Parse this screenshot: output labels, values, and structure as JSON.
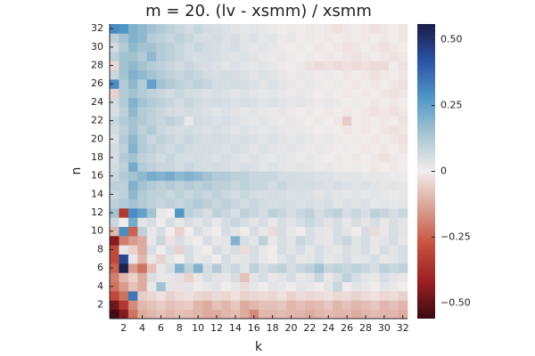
{
  "chart_data": {
    "type": "heatmap",
    "title": "m = 20. (lv - xsmm) / xsmm",
    "xlabel": "k",
    "ylabel": "n",
    "x": [
      1,
      2,
      3,
      4,
      5,
      6,
      7,
      8,
      9,
      10,
      11,
      12,
      13,
      14,
      15,
      16,
      17,
      18,
      19,
      20,
      21,
      22,
      23,
      24,
      25,
      26,
      27,
      28,
      29,
      30,
      31,
      32
    ],
    "y": [
      1,
      2,
      3,
      4,
      5,
      6,
      7,
      8,
      9,
      10,
      11,
      12,
      13,
      14,
      15,
      16,
      17,
      18,
      19,
      20,
      21,
      22,
      23,
      24,
      25,
      26,
      27,
      28,
      29,
      30,
      31,
      32
    ],
    "xlim": [
      0.5,
      32.5
    ],
    "ylim": [
      0.5,
      32.5
    ],
    "xticks": [
      2,
      4,
      6,
      8,
      10,
      12,
      14,
      16,
      18,
      20,
      22,
      24,
      26,
      28,
      30,
      32
    ],
    "yticks": [
      2,
      4,
      6,
      8,
      10,
      12,
      14,
      16,
      18,
      20,
      22,
      24,
      26,
      28,
      30,
      32
    ],
    "clim": [
      -0.56,
      0.56
    ],
    "cticks": [
      {
        "value": -0.5,
        "label": "−0.50"
      },
      {
        "value": -0.25,
        "label": "−0.25"
      },
      0,
      0.25,
      {
        "value": 0.5,
        "label": "0.50"
      }
    ],
    "colormap": [
      "#3b0a13",
      "#9c1f23",
      "#c6503c",
      "#dba192",
      "#f1ecec",
      "#a9c6d2",
      "#4f97c6",
      "#2a52a8",
      "#1b1d46"
    ],
    "z": [
      [
        -0.55,
        -0.45,
        -0.22,
        -0.12,
        -0.1,
        -0.08,
        -0.1,
        -0.08,
        -0.09,
        -0.1,
        -0.12,
        -0.12,
        -0.1,
        -0.09,
        -0.12,
        -0.18,
        -0.1,
        -0.1,
        -0.09,
        -0.1,
        -0.1,
        -0.12,
        -0.1,
        -0.09,
        -0.1,
        -0.1,
        -0.12,
        -0.1,
        -0.09,
        -0.1,
        -0.1,
        -0.12
      ],
      [
        -0.48,
        -0.35,
        -0.18,
        -0.1,
        -0.08,
        -0.06,
        -0.08,
        -0.07,
        -0.06,
        -0.1,
        -0.12,
        -0.08,
        -0.1,
        -0.07,
        -0.12,
        -0.1,
        -0.08,
        -0.08,
        -0.07,
        -0.1,
        -0.08,
        -0.1,
        -0.09,
        -0.07,
        -0.1,
        -0.08,
        -0.1,
        -0.09,
        -0.07,
        -0.1,
        -0.08,
        -0.1
      ],
      [
        -0.3,
        -0.22,
        0.35,
        -0.06,
        -0.04,
        -0.02,
        -0.05,
        -0.03,
        -0.02,
        -0.04,
        -0.05,
        -0.03,
        -0.04,
        -0.02,
        -0.05,
        -0.04,
        -0.03,
        -0.04,
        -0.02,
        -0.05,
        -0.03,
        -0.04,
        -0.03,
        -0.02,
        -0.04,
        -0.03,
        -0.05,
        -0.03,
        -0.02,
        -0.04,
        -0.03,
        -0.05
      ],
      [
        -0.22,
        -0.15,
        -0.08,
        -0.12,
        0.02,
        0.15,
        0.03,
        -0.02,
        0.03,
        0.0,
        0.02,
        0.03,
        0.0,
        0.02,
        -0.03,
        0.02,
        0.0,
        0.03,
        0.02,
        0.0,
        0.03,
        0.02,
        0.0,
        0.03,
        0.08,
        0.0,
        0.03,
        0.02,
        0.0,
        0.03,
        0.02,
        0.0
      ],
      [
        -0.2,
        -0.1,
        -0.05,
        -0.12,
        0.05,
        0.02,
        0.02,
        0.03,
        -0.05,
        0.02,
        0.05,
        0.03,
        0.02,
        0.05,
        -0.08,
        0.03,
        0.05,
        0.02,
        0.03,
        0.05,
        0.02,
        0.03,
        0.08,
        0.02,
        0.05,
        0.1,
        0.05,
        0.03,
        0.02,
        0.05,
        0.03,
        0.02
      ],
      [
        -0.25,
        0.55,
        -0.15,
        -0.22,
        -0.08,
        0.02,
        0.05,
        0.2,
        0.1,
        0.2,
        0.05,
        0.12,
        0.05,
        0.08,
        0.03,
        0.1,
        0.05,
        0.08,
        0.1,
        0.05,
        0.08,
        0.1,
        0.15,
        0.08,
        0.1,
        0.08,
        0.1,
        0.08,
        0.05,
        0.1,
        0.08,
        0.1
      ],
      [
        -0.3,
        0.45,
        0.02,
        -0.1,
        0.02,
        -0.05,
        0.03,
        0.0,
        0.05,
        0.02,
        0.03,
        0.0,
        0.05,
        0.02,
        0.03,
        0.05,
        0.02,
        0.0,
        0.03,
        0.05,
        0.02,
        0.03,
        0.05,
        0.02,
        0.03,
        0.05,
        0.02,
        0.03,
        0.05,
        0.02,
        0.03,
        0.05
      ],
      [
        -0.3,
        0.02,
        -0.05,
        -0.12,
        0.05,
        0.0,
        0.05,
        -0.05,
        0.05,
        0.02,
        0.0,
        0.05,
        0.03,
        0.05,
        -0.03,
        0.05,
        0.02,
        0.0,
        0.05,
        0.03,
        0.05,
        0.02,
        0.05,
        0.03,
        0.02,
        0.05,
        0.03,
        0.05,
        0.02,
        0.05,
        0.03,
        0.05
      ],
      [
        -0.45,
        -0.2,
        -0.15,
        -0.12,
        0.02,
        0.08,
        -0.02,
        0.05,
        0.02,
        0.0,
        0.05,
        0.02,
        0.03,
        0.2,
        0.05,
        0.03,
        0.1,
        0.02,
        0.05,
        0.03,
        0.08,
        0.05,
        0.03,
        0.02,
        0.05,
        0.08,
        0.03,
        0.05,
        0.02,
        0.03,
        0.05,
        0.02
      ],
      [
        -0.1,
        0.3,
        -0.25,
        0.1,
        0.02,
        0.05,
        0.0,
        -0.05,
        0.0,
        0.05,
        0.02,
        0.0,
        0.05,
        0.03,
        0.0,
        0.05,
        0.02,
        -0.03,
        0.05,
        0.02,
        0.0,
        0.05,
        0.03,
        0.02,
        0.05,
        0.03,
        0.0,
        0.05,
        -0.03,
        0.02,
        0.05,
        0.03
      ],
      [
        0.08,
        0.0,
        0.22,
        0.03,
        0.05,
        0.0,
        0.05,
        0.02,
        0.05,
        0.03,
        0.05,
        0.02,
        0.05,
        0.08,
        0.05,
        0.03,
        0.05,
        0.02,
        0.05,
        0.03,
        0.05,
        0.08,
        0.05,
        0.03,
        0.05,
        0.02,
        0.05,
        0.03,
        0.05,
        0.02,
        0.05,
        0.03
      ],
      [
        0.15,
        -0.35,
        0.3,
        0.25,
        0.15,
        0.02,
        0.0,
        0.28,
        0.1,
        0.08,
        0.05,
        0.1,
        0.08,
        0.05,
        0.1,
        0.08,
        0.05,
        0.1,
        0.08,
        0.05,
        0.08,
        0.1,
        0.05,
        0.08,
        0.1,
        0.05,
        0.08,
        0.05,
        0.1,
        0.08,
        0.05,
        0.08
      ],
      [
        0.1,
        0.12,
        0.15,
        0.12,
        0.1,
        0.08,
        0.1,
        0.08,
        0.1,
        0.12,
        0.1,
        0.08,
        0.1,
        0.08,
        0.06,
        0.08,
        0.06,
        0.05,
        0.06,
        0.05,
        0.04,
        0.05,
        0.04,
        0.05,
        0.03,
        0.04,
        0.03,
        0.04,
        0.02,
        0.03,
        0.02,
        0.03
      ],
      [
        0.08,
        0.1,
        0.18,
        0.12,
        0.1,
        0.1,
        0.08,
        0.1,
        0.08,
        0.1,
        0.08,
        0.1,
        0.08,
        0.06,
        0.08,
        0.06,
        0.05,
        0.06,
        0.05,
        0.04,
        0.05,
        0.04,
        0.03,
        0.04,
        0.03,
        0.02,
        0.03,
        0.02,
        0.03,
        0.02,
        0.01,
        0.02
      ],
      [
        0.1,
        0.1,
        0.2,
        0.15,
        0.12,
        0.1,
        0.12,
        0.1,
        0.12,
        0.1,
        0.12,
        0.1,
        0.1,
        0.08,
        0.1,
        0.08,
        0.08,
        0.06,
        0.08,
        0.06,
        0.05,
        0.06,
        0.05,
        0.04,
        0.05,
        0.04,
        0.03,
        0.04,
        0.03,
        0.02,
        0.03,
        0.02
      ],
      [
        0.08,
        0.12,
        0.15,
        0.18,
        0.22,
        0.2,
        0.22,
        0.18,
        0.2,
        0.18,
        0.15,
        0.12,
        0.12,
        0.1,
        0.1,
        0.08,
        0.08,
        0.08,
        0.06,
        0.06,
        0.05,
        0.05,
        0.04,
        0.04,
        0.03,
        0.03,
        0.03,
        0.02,
        0.02,
        0.02,
        0.01,
        0.01
      ],
      [
        0.06,
        0.1,
        0.22,
        0.12,
        0.1,
        0.08,
        0.08,
        0.06,
        0.08,
        0.06,
        0.05,
        0.06,
        0.05,
        0.04,
        0.05,
        0.04,
        0.03,
        0.04,
        0.03,
        0.02,
        0.03,
        0.02,
        0.01,
        0.02,
        0.01,
        0.0,
        0.01,
        0.0,
        -0.01,
        0.0,
        -0.01,
        0.0
      ],
      [
        0.05,
        0.12,
        0.15,
        0.1,
        0.08,
        0.06,
        0.08,
        0.06,
        0.05,
        0.06,
        0.05,
        0.04,
        0.05,
        0.04,
        0.03,
        0.04,
        0.03,
        0.02,
        0.03,
        0.02,
        0.01,
        0.02,
        0.01,
        0.0,
        0.01,
        0.0,
        -0.01,
        0.0,
        -0.01,
        -0.02,
        -0.01,
        0.0
      ],
      [
        0.06,
        0.1,
        0.2,
        0.12,
        0.1,
        0.08,
        0.06,
        0.08,
        0.06,
        0.05,
        0.06,
        0.05,
        0.04,
        0.05,
        0.04,
        0.03,
        0.04,
        0.03,
        0.02,
        0.03,
        0.02,
        0.01,
        0.02,
        0.01,
        0.0,
        0.01,
        0.0,
        -0.01,
        0.0,
        -0.01,
        0.0,
        -0.01
      ],
      [
        0.04,
        0.12,
        0.18,
        0.12,
        0.08,
        0.1,
        0.08,
        0.06,
        0.08,
        0.06,
        0.05,
        0.06,
        0.05,
        0.04,
        0.05,
        0.04,
        0.03,
        0.04,
        0.03,
        0.02,
        0.03,
        0.02,
        0.01,
        0.02,
        0.01,
        0.0,
        0.01,
        0.0,
        -0.01,
        0.0,
        -0.01,
        -0.02
      ],
      [
        0.06,
        0.1,
        0.15,
        0.1,
        0.12,
        0.08,
        0.06,
        0.05,
        0.06,
        0.05,
        0.04,
        0.05,
        0.04,
        0.03,
        0.04,
        0.03,
        0.02,
        0.03,
        0.02,
        0.01,
        0.02,
        0.01,
        0.0,
        0.01,
        0.0,
        -0.01,
        0.0,
        -0.01,
        0.0,
        -0.01,
        -0.02,
        -0.01
      ],
      [
        0.08,
        0.12,
        0.15,
        0.12,
        0.1,
        0.08,
        0.1,
        0.08,
        0.02,
        0.06,
        0.05,
        0.04,
        0.05,
        0.04,
        0.03,
        0.02,
        0.03,
        0.02,
        0.01,
        0.02,
        0.01,
        0.0,
        0.01,
        0.0,
        -0.01,
        -0.06,
        0.0,
        -0.01,
        0.0,
        -0.01,
        0.0,
        -0.02
      ],
      [
        0.05,
        0.1,
        0.18,
        0.12,
        0.1,
        0.08,
        0.06,
        0.05,
        0.06,
        0.05,
        0.04,
        0.03,
        0.04,
        0.03,
        0.02,
        0.03,
        0.02,
        0.01,
        0.02,
        0.01,
        0.0,
        0.01,
        0.0,
        -0.01,
        0.0,
        -0.01,
        0.0,
        -0.01,
        -0.02,
        -0.01,
        -0.02,
        -0.01
      ],
      [
        0.06,
        0.12,
        0.2,
        0.15,
        0.12,
        0.1,
        0.08,
        0.06,
        0.08,
        0.06,
        0.05,
        0.06,
        0.05,
        0.04,
        0.05,
        0.04,
        0.03,
        0.04,
        0.03,
        0.02,
        0.03,
        0.02,
        0.01,
        0.02,
        0.01,
        0.0,
        0.01,
        0.0,
        -0.01,
        0.0,
        -0.01,
        0.0
      ],
      [
        -0.05,
        0.12,
        0.15,
        0.12,
        0.1,
        0.08,
        0.06,
        0.08,
        0.06,
        0.05,
        0.04,
        0.05,
        0.04,
        0.03,
        0.04,
        0.03,
        0.02,
        0.03,
        0.02,
        0.01,
        0.02,
        0.01,
        0.0,
        0.01,
        0.0,
        -0.01,
        0.0,
        -0.01,
        0.0,
        -0.01,
        -0.02,
        -0.01
      ],
      [
        0.3,
        0.12,
        0.18,
        0.12,
        0.25,
        0.15,
        0.12,
        0.1,
        0.08,
        0.1,
        0.08,
        0.06,
        0.05,
        0.06,
        0.05,
        0.04,
        0.03,
        0.04,
        0.03,
        0.02,
        0.01,
        0.02,
        0.01,
        0.0,
        0.01,
        0.0,
        -0.01,
        0.0,
        -0.01,
        0.0,
        -0.01,
        -0.02
      ],
      [
        0.08,
        0.15,
        0.2,
        0.18,
        0.15,
        0.12,
        0.1,
        0.08,
        0.1,
        0.08,
        0.06,
        0.05,
        0.06,
        0.05,
        0.04,
        0.03,
        0.04,
        0.03,
        0.02,
        0.01,
        0.02,
        0.01,
        0.0,
        0.01,
        0.0,
        -0.01,
        0.0,
        -0.01,
        -0.02,
        -0.01,
        0.0,
        -0.01
      ],
      [
        -0.04,
        0.15,
        0.18,
        0.15,
        0.12,
        0.1,
        0.08,
        0.06,
        0.08,
        0.06,
        0.05,
        0.04,
        0.03,
        0.04,
        0.03,
        0.02,
        0.03,
        0.02,
        0.01,
        0.0,
        0.01,
        -0.02,
        -0.03,
        -0.02,
        -0.03,
        -0.02,
        -0.03,
        -0.02,
        -0.03,
        -0.03,
        0.0,
        -0.02
      ],
      [
        0.1,
        0.15,
        0.15,
        0.12,
        0.18,
        0.12,
        0.1,
        0.08,
        0.06,
        0.05,
        0.06,
        0.05,
        0.04,
        0.03,
        0.04,
        0.03,
        0.02,
        0.01,
        0.02,
        0.01,
        0.0,
        0.01,
        0.0,
        -0.01,
        0.0,
        -0.01,
        -0.02,
        -0.01,
        0.0,
        -0.01,
        -0.02,
        -0.01
      ],
      [
        0.06,
        0.12,
        0.18,
        0.15,
        0.15,
        0.12,
        0.1,
        0.08,
        0.06,
        0.08,
        0.06,
        0.05,
        0.04,
        0.05,
        0.03,
        0.02,
        0.03,
        0.02,
        0.01,
        0.0,
        0.01,
        0.0,
        -0.01,
        0.0,
        -0.01,
        -0.02,
        -0.01,
        0.0,
        -0.01,
        -0.02,
        -0.01,
        0.0
      ],
      [
        0.1,
        0.15,
        0.2,
        0.18,
        0.12,
        0.1,
        0.08,
        0.1,
        0.08,
        0.06,
        0.05,
        0.06,
        0.04,
        0.05,
        0.03,
        0.04,
        0.02,
        0.03,
        0.01,
        0.02,
        0.0,
        0.01,
        0.0,
        -0.01,
        0.0,
        -0.01,
        0.0,
        -0.01,
        0.0,
        -0.01,
        0.0,
        -0.01
      ],
      [
        0.3,
        0.28,
        0.2,
        0.18,
        0.15,
        0.12,
        0.1,
        0.08,
        0.06,
        0.08,
        0.06,
        0.05,
        0.04,
        0.03,
        0.02,
        0.03,
        0.02,
        0.01,
        0.0,
        0.01,
        0.0,
        -0.01,
        0.0,
        -0.01,
        -0.02,
        -0.01,
        0.0,
        -0.01,
        -0.02,
        -0.01,
        0.0,
        -0.01
      ]
    ]
  }
}
